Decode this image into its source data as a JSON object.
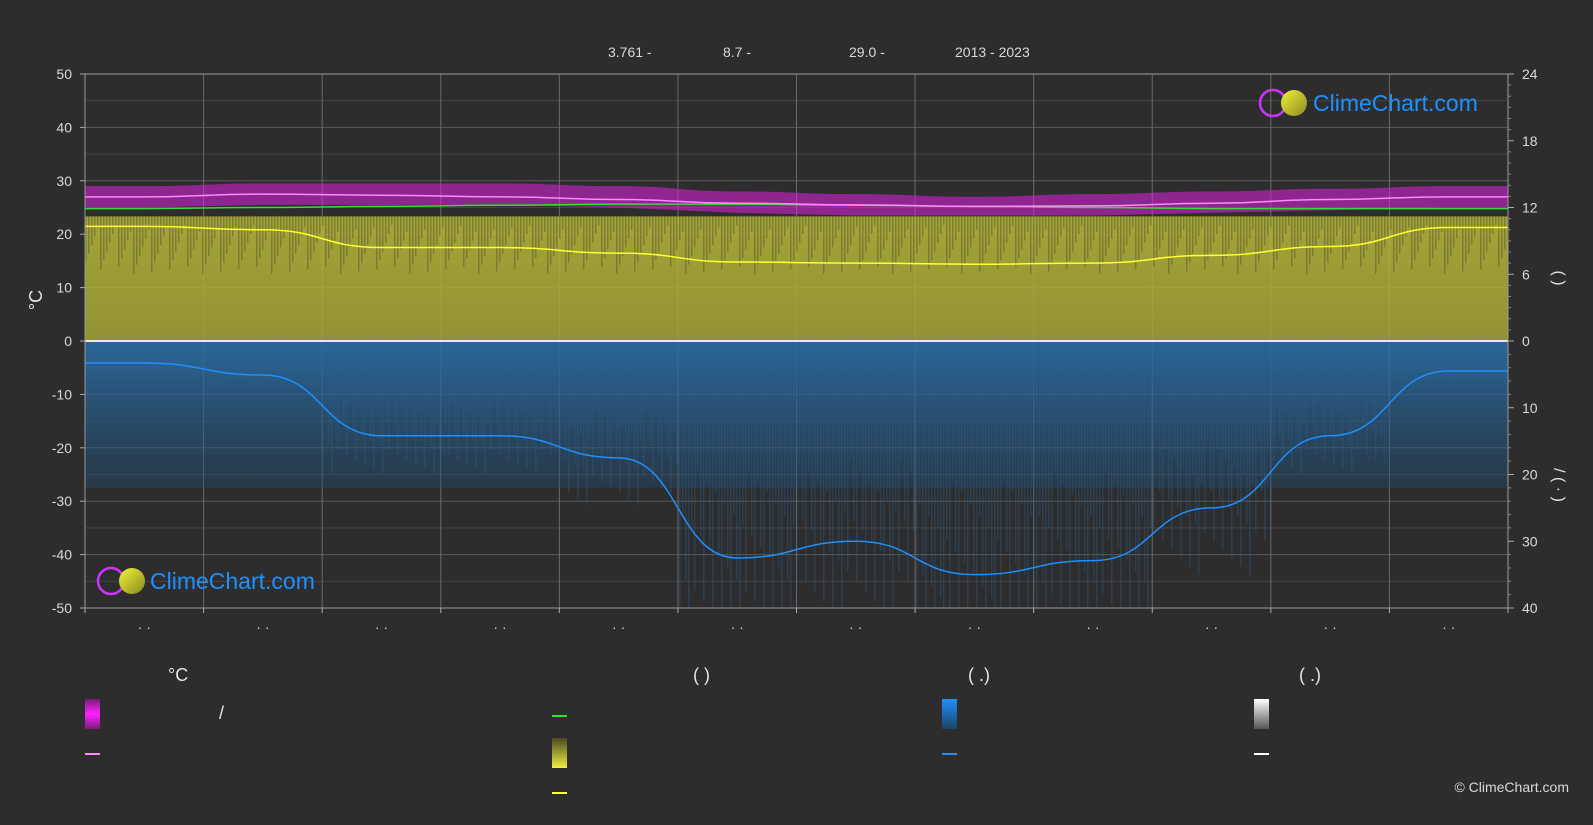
{
  "header": {
    "item1": "3.761 -",
    "item2": "8.7 -",
    "item3": "29.0 -",
    "item4": "2013 - 2023"
  },
  "watermark": "ClimeChart.com",
  "copyright": "© ClimeChart.com",
  "colors": {
    "background": "#2d2d2d",
    "temp_range": "#e020e0",
    "temp_mean": "#ff88ff",
    "daylight": "#33dd33",
    "sunshine_fill": "#c8c83c",
    "sunshine_line": "#ffff33",
    "precip_fill": "#2a6fa8",
    "precip_line": "#1e90ff",
    "snow_line": "#ffffff",
    "logo_text": "#1e90ff"
  },
  "legend": {
    "col1_head": "°C",
    "col1_slash": "/",
    "col2_head": "(          )",
    "col3_head": "(   .)",
    "col4_head": "(   .)"
  },
  "chart_data": {
    "type": "line",
    "categories": [
      "",
      "",
      "",
      "",
      "",
      "",
      "",
      "",
      "",
      "",
      "",
      ""
    ],
    "xtick_labels": [
      "· ·",
      "· ·",
      "· ·",
      "· ·",
      "· ·",
      "· ·",
      "· ·",
      "· ·",
      "· ·",
      "· ·",
      "· ·",
      "· ·"
    ],
    "ylabel": "°C",
    "ylim": [
      -50,
      50
    ],
    "yticks": [
      50,
      40,
      30,
      20,
      10,
      0,
      -10,
      -20,
      -30,
      -40,
      -50
    ],
    "y2_upper": {
      "ticks": [
        24,
        18,
        12,
        6,
        0
      ],
      "ylim": [
        0,
        24
      ],
      "label": "(    )"
    },
    "y2_lower": {
      "ticks": [
        0,
        10,
        20,
        30,
        40
      ],
      "ylim": [
        0,
        40
      ],
      "label": "/   (  ·  )"
    },
    "series": [
      {
        "key": "temp_max_band_top",
        "axis": "temp",
        "values": [
          29,
          29.5,
          29.5,
          29.5,
          29,
          28,
          27.5,
          27,
          27.5,
          28,
          28.5,
          29
        ]
      },
      {
        "key": "temp_min_band_bottom",
        "axis": "temp",
        "values": [
          25,
          25.5,
          25.5,
          25.5,
          25,
          24,
          23.5,
          23.5,
          23.5,
          24,
          24.5,
          25
        ]
      },
      {
        "key": "temp_mean",
        "axis": "temp",
        "values": [
          27,
          27.5,
          27.3,
          27,
          26.5,
          25.8,
          25.5,
          25.2,
          25.3,
          25.8,
          26.5,
          27
        ]
      },
      {
        "key": "daylight_hours",
        "axis": "sun",
        "values": [
          11.9,
          12.0,
          12.1,
          12.2,
          12.3,
          12.3,
          12.2,
          12.1,
          12.0,
          11.9,
          11.9,
          11.9
        ]
      },
      {
        "key": "sunshine_hours",
        "axis": "sun",
        "values": [
          10.3,
          10.0,
          8.4,
          8.4,
          7.9,
          7.1,
          7.0,
          6.9,
          7.0,
          7.7,
          8.5,
          10.2
        ]
      },
      {
        "key": "precipitation_mm",
        "axis": "precip",
        "values": [
          3.3,
          5.1,
          14.2,
          14.2,
          17.5,
          32.5,
          30.0,
          35.0,
          32.9,
          25.0,
          14.2,
          4.5
        ]
      }
    ]
  }
}
